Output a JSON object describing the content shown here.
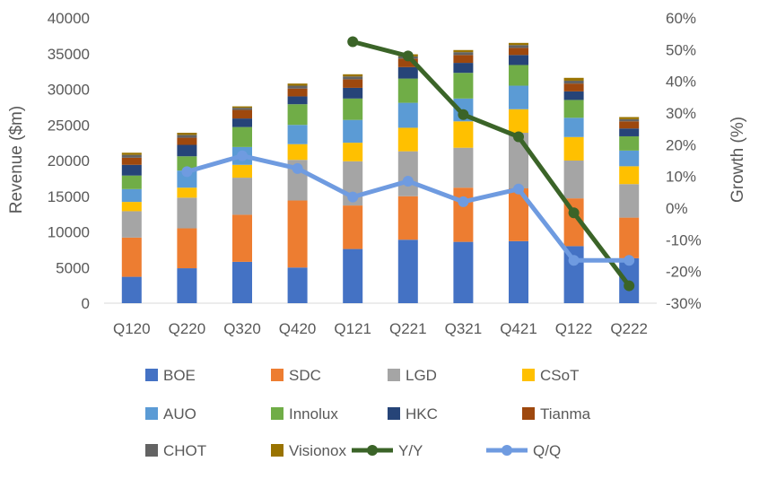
{
  "chart_data": {
    "type": "bar",
    "stacked": true,
    "categories": [
      "Q120",
      "Q220",
      "Q320",
      "Q420",
      "Q121",
      "Q221",
      "Q321",
      "Q421",
      "Q122",
      "Q222"
    ],
    "ylabel": "Revenue ($m)",
    "ylim": [
      0,
      40000
    ],
    "yticks": [
      "0",
      "5000",
      "10000",
      "15000",
      "20000",
      "25000",
      "30000",
      "35000",
      "40000"
    ],
    "y2label": "Growth (%)",
    "y2lim": [
      -30,
      60
    ],
    "y2ticks": [
      "-30%",
      "-20%",
      "-10%",
      "0%",
      "10%",
      "20%",
      "30%",
      "40%",
      "50%",
      "60%"
    ],
    "grid": false,
    "legend_position": "bottom",
    "series": [
      {
        "name": "BOE",
        "color": "#4472C4",
        "values": [
          3700,
          4900,
          5800,
          5000,
          7600,
          8900,
          8600,
          8700,
          8000,
          6300
        ]
      },
      {
        "name": "SDC",
        "color": "#ED7D31",
        "values": [
          5500,
          5600,
          6600,
          9400,
          6100,
          6100,
          7600,
          7400,
          6700,
          5700
        ]
      },
      {
        "name": "LGD",
        "color": "#A5A5A5",
        "values": [
          3700,
          4300,
          5200,
          5700,
          6200,
          6300,
          5600,
          7800,
          5300,
          4700
        ]
      },
      {
        "name": "CSoT",
        "color": "#FFC000",
        "values": [
          1300,
          1400,
          1800,
          2200,
          2600,
          3300,
          3700,
          3300,
          3300,
          2500
        ]
      },
      {
        "name": "AUO",
        "color": "#5B9BD5",
        "values": [
          1800,
          2400,
          2500,
          2700,
          3200,
          3500,
          3200,
          3300,
          2700,
          2200
        ]
      },
      {
        "name": "Innolux",
        "color": "#70AD47",
        "values": [
          1900,
          2000,
          2800,
          2900,
          3000,
          3400,
          3600,
          2900,
          2500,
          2000
        ]
      },
      {
        "name": "HKC",
        "color": "#264478",
        "values": [
          1500,
          1600,
          1200,
          1100,
          1500,
          1600,
          1400,
          1400,
          1200,
          1100
        ]
      },
      {
        "name": "Tianma",
        "color": "#9E480E",
        "values": [
          1000,
          1000,
          1200,
          1100,
          1200,
          1200,
          1100,
          1000,
          1100,
          1000
        ]
      },
      {
        "name": "CHOT",
        "color": "#636363",
        "values": [
          400,
          400,
          300,
          400,
          400,
          300,
          400,
          400,
          400,
          300
        ]
      },
      {
        "name": "Visionox",
        "color": "#997300",
        "values": [
          300,
          300,
          200,
          300,
          300,
          300,
          300,
          300,
          400,
          300
        ]
      }
    ],
    "lines": [
      {
        "name": "Y/Y",
        "color": "#3B6428",
        "axis": "secondary",
        "values": [
          null,
          null,
          null,
          null,
          52.5,
          48,
          29.5,
          22.5,
          -1.5,
          -24.5
        ]
      },
      {
        "name": "Q/Q",
        "color": "#6F9BE0",
        "axis": "secondary",
        "values": [
          null,
          11.5,
          16.5,
          12.5,
          3.5,
          8.5,
          2,
          6,
          -16.5,
          -16.5
        ]
      }
    ]
  }
}
